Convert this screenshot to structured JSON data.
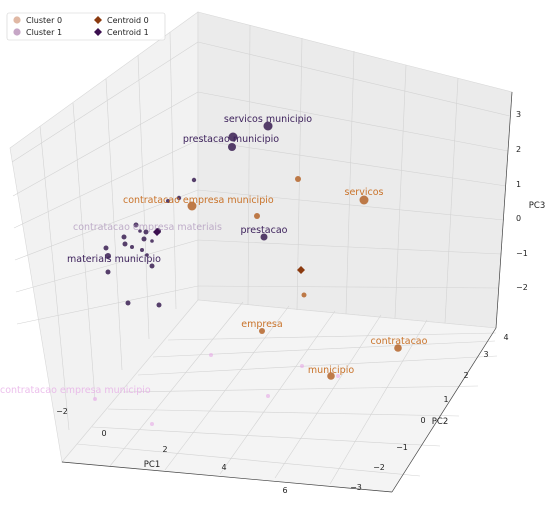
{
  "chart_data": {
    "type": "scatter3d",
    "title": "",
    "xlabel": "PC1",
    "ylabel": "PC2",
    "zlabel": "PC3",
    "xticks": [
      "−2",
      "0",
      "2",
      "4",
      "6"
    ],
    "yticks": [
      "4",
      "3",
      "2",
      "1",
      "0",
      "−1",
      "−2",
      "−3"
    ],
    "zticks": [
      "3",
      "2",
      "1",
      "0",
      "−1",
      "−2"
    ],
    "legend": {
      "position": "top-left",
      "entries": [
        {
          "label": "Cluster 0",
          "marker": "circle",
          "color": "#e0b8a4"
        },
        {
          "label": "Cluster 1",
          "marker": "circle",
          "color": "#c6a6c6"
        },
        {
          "label": "Centroid 0",
          "marker": "diamond",
          "color": "#8b3a0f"
        },
        {
          "label": "Centroid 1",
          "marker": "diamond",
          "color": "#3b0f4f"
        }
      ]
    },
    "colors": {
      "cluster0_text": "#c9732a",
      "cluster1_text": "#3b1f5a",
      "cluster0_point": "#b5652a",
      "cluster1_point": "#2e1248",
      "faded_text": "#e6a9e6",
      "pane_left": "#f2f2f2",
      "pane_right": "#ebebeb",
      "pane_floor": "#f2f2f2",
      "grid": "#cfcfcf"
    },
    "annotations": [
      {
        "text": "servicos municipio",
        "cluster": 1
      },
      {
        "text": "prestacao municipio",
        "cluster": 1
      },
      {
        "text": "servicos",
        "cluster": 0
      },
      {
        "text": "contratacao empresa municipio",
        "cluster": 0
      },
      {
        "text": "contratacao empresa materiais",
        "cluster": 1,
        "faded": true
      },
      {
        "text": "prestacao",
        "cluster": 1
      },
      {
        "text": "materiais municipio",
        "cluster": 1
      },
      {
        "text": "empresa",
        "cluster": 0
      },
      {
        "text": "contratacao",
        "cluster": 0
      },
      {
        "text": "municipio",
        "cluster": 0
      },
      {
        "text": "contratacao empresa municipio",
        "cluster": 0,
        "faded": true
      }
    ],
    "points": [
      {
        "cluster": 1,
        "size": 4.5,
        "label_index": 0
      },
      {
        "cluster": 1,
        "size": 4.5,
        "label_index": 1
      },
      {
        "cluster": 1,
        "size": 4
      },
      {
        "cluster": 0,
        "size": 4.5,
        "label_index": 2
      },
      {
        "cluster": 0,
        "size": 3
      },
      {
        "cluster": 1,
        "size": 2.2
      },
      {
        "cluster": 1,
        "size": 2.2
      },
      {
        "cluster": 0,
        "size": 4.5,
        "label_index": 3
      },
      {
        "cluster": 1,
        "size": 2
      },
      {
        "cluster": 0,
        "size": 3
      },
      {
        "cluster": 1,
        "size": 3.5,
        "label_index": 5
      },
      {
        "cluster": 1,
        "size": 3
      },
      {
        "cluster": 1,
        "size": 2.5
      },
      {
        "cluster": 1,
        "size": 2.5
      },
      {
        "cluster": 1,
        "size": 2.5
      },
      {
        "cluster": 1,
        "size": 3,
        "label_index": 6
      },
      {
        "cluster": 1,
        "size": 2.5
      },
      {
        "cluster": 1,
        "size": 2.5
      },
      {
        "cluster": 1,
        "size": 2
      },
      {
        "cluster": 1,
        "size": 2
      },
      {
        "cluster": 1,
        "size": 2.5
      },
      {
        "cluster": 1,
        "size": 2.5
      },
      {
        "cluster": 1,
        "size": 2.5
      },
      {
        "cluster": 0,
        "size": 2.5
      },
      {
        "cluster": 0,
        "size": 3,
        "label_index": 7
      },
      {
        "cluster": 0,
        "size": 3.8,
        "label_index": 8
      },
      {
        "cluster": 0,
        "size": 3.8,
        "label_index": 9
      },
      {
        "cluster": 1,
        "size": 2.5
      },
      {
        "cluster": 1,
        "size": 2.5
      },
      {
        "cluster": 1,
        "size": 1.8
      },
      {
        "cluster": 1,
        "size": 1.8
      },
      {
        "cluster": 1,
        "size": 1.8
      }
    ],
    "centroids": [
      {
        "label": "Centroid 0",
        "color": "#8b3a0f"
      },
      {
        "label": "Centroid 1",
        "color": "#3b0f4f"
      }
    ]
  }
}
